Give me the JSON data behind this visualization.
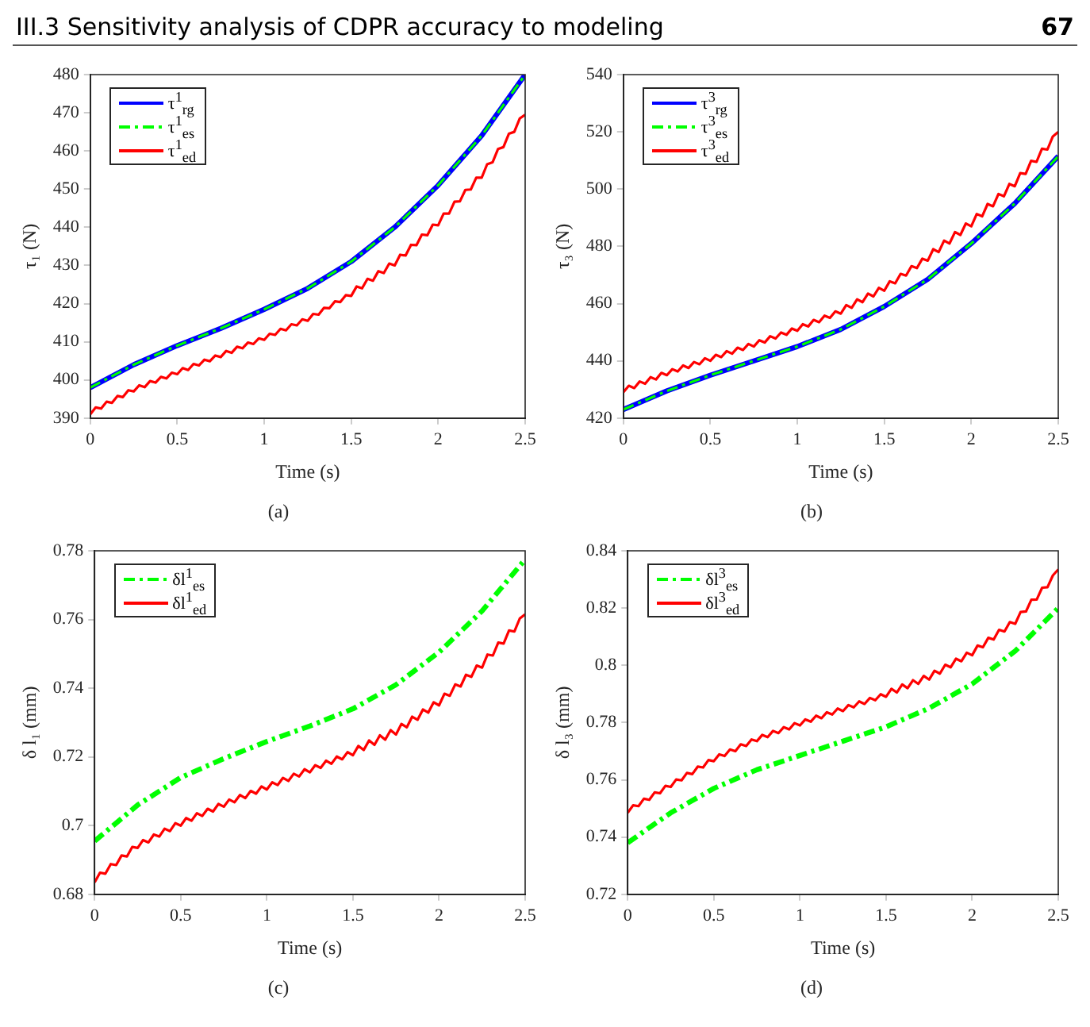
{
  "chart_data": [
    {
      "type": "line",
      "xlabel": "Time (s)",
      "ylabel": "τ₁ (N)",
      "annotations": [
        "III.3 Sensitivity analysis of CDPR accuracy to modeling",
        "67",
        "(a)"
      ],
      "xlim": [
        0,
        2.5
      ],
      "xticks": [
        0,
        0.5,
        1,
        1.5,
        2,
        2.5
      ],
      "ylim": [
        390,
        480
      ],
      "yticks": [
        390,
        400,
        410,
        420,
        430,
        440,
        450,
        460,
        470,
        480
      ],
      "grid": false,
      "legend": "top left",
      "marker": "none",
      "series": [
        {
          "name": "τ$^{1}$$_{rg}$",
          "color": "#0000ff",
          "line_style": "solid",
          "x": [
            0,
            0.25,
            0.5,
            0.75,
            1,
            1.25,
            1.5,
            1.75,
            2,
            2.25,
            2.5
          ],
          "values": [
            398,
            404,
            409,
            413.5,
            418.5,
            424,
            431,
            440,
            451,
            464,
            480
          ]
        },
        {
          "name": "τ$^{1}$$_{es}$",
          "color": "#00ff00",
          "line_style": "dashed",
          "x": [
            0,
            0.25,
            0.5,
            0.75,
            1,
            1.25,
            1.5,
            1.75,
            2,
            2.25,
            2.5
          ],
          "values": [
            398,
            404,
            409,
            413.5,
            418.5,
            424,
            431,
            440,
            451,
            464,
            480
          ]
        },
        {
          "name": "τ$^{1}$$_{ed}$",
          "color": "#ff0000",
          "line_style": "solid",
          "x": [
            0,
            0.03125,
            0.0625,
            0.09375,
            0.125,
            0.15625,
            0.1875,
            0.21875,
            0.25,
            0.28125,
            0.3125,
            0.34375,
            0.375,
            0.40625,
            0.4375,
            0.46875,
            0.5,
            0.53125,
            0.5625,
            0.59375,
            0.625,
            0.65625,
            0.6875,
            0.71875,
            0.75,
            0.78125,
            0.8125,
            0.84375,
            0.875,
            0.90625,
            0.9375,
            0.96875,
            1,
            1.03125,
            1.0625,
            1.09375,
            1.125,
            1.15625,
            1.1875,
            1.21875,
            1.25,
            1.28125,
            1.3125,
            1.34375,
            1.375,
            1.40625,
            1.4375,
            1.46875,
            1.5,
            1.53125,
            1.5625,
            1.59375,
            1.625,
            1.65625,
            1.6875,
            1.71875,
            1.75,
            1.78125,
            1.8125,
            1.84375,
            1.875,
            1.90625,
            1.9375,
            1.96875,
            2,
            2.03125,
            2.0625,
            2.09375,
            2.125,
            2.15625,
            2.1875,
            2.21875,
            2.25,
            2.28125,
            2.3125,
            2.34375,
            2.375,
            2.40625,
            2.4375,
            2.46875,
            2.5
          ],
          "values": [
            391,
            392.8,
            392.5,
            394.3,
            394,
            395.8,
            395.5,
            397.3,
            397,
            398.6,
            398.1,
            399.7,
            399.3,
            400.8,
            400.4,
            401.9,
            401.5,
            403.1,
            402.6,
            404.2,
            403.8,
            405.3,
            404.9,
            406.4,
            406,
            407.6,
            407.1,
            408.7,
            408.3,
            409.8,
            409.4,
            410.9,
            410.5,
            412.1,
            411.8,
            413.4,
            413,
            414.6,
            414.3,
            415.9,
            415.5,
            417.3,
            417.1,
            418.9,
            418.8,
            420.6,
            420.4,
            422.2,
            422,
            424.5,
            424,
            426.5,
            426,
            428.5,
            428,
            430.5,
            430,
            432.8,
            432.6,
            435.4,
            435.3,
            438.1,
            437.9,
            440.7,
            440.5,
            443.6,
            443.6,
            446.7,
            446.8,
            449.8,
            449.9,
            453,
            453,
            456.5,
            457,
            460.5,
            461,
            464.5,
            465,
            468.5,
            469.5
          ]
        }
      ]
    },
    {
      "type": "line",
      "xlabel": "Time (s)",
      "ylabel": "τ₃ (N)",
      "annotations": [
        "(b)"
      ],
      "xlim": [
        0,
        2.5
      ],
      "xticks": [
        0,
        0.5,
        1,
        1.5,
        2,
        2.5
      ],
      "ylim": [
        420,
        540
      ],
      "yticks": [
        420,
        440,
        460,
        480,
        500,
        520,
        540
      ],
      "grid": false,
      "legend": "top left",
      "marker": "none",
      "series": [
        {
          "name": "τ$^{3}$$_{rg}$",
          "color": "#0000ff",
          "line_style": "solid",
          "x": [
            0,
            0.25,
            0.5,
            0.75,
            1,
            1.25,
            1.5,
            1.75,
            2,
            2.25,
            2.5
          ],
          "values": [
            423,
            429.5,
            435,
            440,
            445,
            451,
            459,
            468.5,
            481,
            495,
            511.5
          ]
        },
        {
          "name": "τ$^{3}$$_{es}$",
          "color": "#00ff00",
          "line_style": "dashed",
          "x": [
            0,
            0.25,
            0.5,
            0.75,
            1,
            1.25,
            1.5,
            1.75,
            2,
            2.25,
            2.5
          ],
          "values": [
            423,
            429.5,
            435,
            440,
            445,
            451,
            459,
            468.5,
            481,
            495,
            511.5
          ]
        },
        {
          "name": "τ$^{3}$$_{ed}$",
          "color": "#ff0000",
          "line_style": "solid",
          "x": [
            0,
            0.03125,
            0.0625,
            0.09375,
            0.125,
            0.15625,
            0.1875,
            0.21875,
            0.25,
            0.28125,
            0.3125,
            0.34375,
            0.375,
            0.40625,
            0.4375,
            0.46875,
            0.5,
            0.53125,
            0.5625,
            0.59375,
            0.625,
            0.65625,
            0.6875,
            0.71875,
            0.75,
            0.78125,
            0.8125,
            0.84375,
            0.875,
            0.90625,
            0.9375,
            0.96875,
            1,
            1.03125,
            1.0625,
            1.09375,
            1.125,
            1.15625,
            1.1875,
            1.21875,
            1.25,
            1.28125,
            1.3125,
            1.34375,
            1.375,
            1.40625,
            1.4375,
            1.46875,
            1.5,
            1.53125,
            1.5625,
            1.59375,
            1.625,
            1.65625,
            1.6875,
            1.71875,
            1.75,
            1.78125,
            1.8125,
            1.84375,
            1.875,
            1.90625,
            1.9375,
            1.96875,
            2,
            2.03125,
            2.0625,
            2.09375,
            2.125,
            2.15625,
            2.1875,
            2.21875,
            2.25,
            2.28125,
            2.3125,
            2.34375,
            2.375,
            2.40625,
            2.4375,
            2.46875,
            2.5
          ],
          "values": [
            429,
            431.3,
            430.5,
            432.8,
            432,
            434.3,
            433.5,
            435.8,
            435,
            437.1,
            436.3,
            438.4,
            437.5,
            439.6,
            438.8,
            440.9,
            440,
            442.1,
            441.3,
            443.4,
            442.5,
            444.6,
            443.8,
            445.9,
            445,
            447.2,
            446.4,
            448.6,
            447.8,
            449.9,
            449.1,
            451.3,
            450.5,
            452.8,
            452,
            454.3,
            453.5,
            455.8,
            455,
            457.3,
            456.5,
            459.5,
            458.5,
            461.5,
            460.5,
            463.5,
            462.5,
            465.5,
            464.5,
            467.8,
            467.1,
            470.4,
            469.8,
            473.1,
            472.4,
            475.7,
            475,
            479,
            478,
            482,
            481,
            485,
            484,
            488,
            487,
            491.3,
            490.5,
            494.8,
            494,
            498.3,
            497.5,
            501.8,
            501,
            505.6,
            505.3,
            509.9,
            509.5,
            514.1,
            513.8,
            518.4,
            520
          ]
        }
      ]
    },
    {
      "type": "line",
      "xlabel": "Time (s)",
      "ylabel": "δ l₁ (mm)",
      "annotations": [
        "(c)"
      ],
      "xlim": [
        0,
        2.5
      ],
      "xticks": [
        0,
        0.5,
        1,
        1.5,
        2,
        2.5
      ],
      "ylim": [
        0.68,
        0.78
      ],
      "yticks": [
        0.68,
        0.7,
        0.72,
        0.74,
        0.76,
        0.78
      ],
      "grid": false,
      "legend": "top left",
      "marker": "none",
      "series": [
        {
          "name": "δl$^{1}$$_{es}$",
          "color": "#00ff00",
          "line_style": "dashed",
          "x": [
            0,
            0.25,
            0.5,
            0.75,
            1,
            1.25,
            1.5,
            1.75,
            2,
            2.25,
            2.5
          ],
          "values": [
            0.6955,
            0.706,
            0.714,
            0.7195,
            0.7245,
            0.729,
            0.734,
            0.741,
            0.7505,
            0.7625,
            0.7775
          ]
        },
        {
          "name": "δl$^{1}$$_{ed}$",
          "color": "#ff0000",
          "line_style": "solid",
          "x": [
            0,
            0.03125,
            0.0625,
            0.09375,
            0.125,
            0.15625,
            0.1875,
            0.21875,
            0.25,
            0.28125,
            0.3125,
            0.34375,
            0.375,
            0.40625,
            0.4375,
            0.46875,
            0.5,
            0.53125,
            0.5625,
            0.59375,
            0.625,
            0.65625,
            0.6875,
            0.71875,
            0.75,
            0.78125,
            0.8125,
            0.84375,
            0.875,
            0.90625,
            0.9375,
            0.96875,
            1,
            1.03125,
            1.0625,
            1.09375,
            1.125,
            1.15625,
            1.1875,
            1.21875,
            1.25,
            1.28125,
            1.3125,
            1.34375,
            1.375,
            1.40625,
            1.4375,
            1.46875,
            1.5,
            1.53125,
            1.5625,
            1.59375,
            1.625,
            1.65625,
            1.6875,
            1.71875,
            1.75,
            1.78125,
            1.8125,
            1.84375,
            1.875,
            1.90625,
            1.9375,
            1.96875,
            2,
            2.03125,
            2.0625,
            2.09375,
            2.125,
            2.15625,
            2.1875,
            2.21875,
            2.25,
            2.28125,
            2.3125,
            2.34375,
            2.375,
            2.40625,
            2.4375,
            2.46875,
            2.5
          ],
          "values": [
            0.6835,
            0.6863,
            0.686,
            0.6888,
            0.6885,
            0.6913,
            0.691,
            0.6938,
            0.6935,
            0.6958,
            0.6951,
            0.6974,
            0.6968,
            0.6991,
            0.6984,
            0.7007,
            0.7,
            0.7022,
            0.7014,
            0.7036,
            0.7028,
            0.7049,
            0.7041,
            0.7063,
            0.7055,
            0.7076,
            0.7068,
            0.7089,
            0.708,
            0.7101,
            0.7093,
            0.7114,
            0.7105,
            0.7126,
            0.7118,
            0.7139,
            0.713,
            0.7151,
            0.7143,
            0.7164,
            0.7155,
            0.7176,
            0.7168,
            0.7189,
            0.718,
            0.7201,
            0.7193,
            0.7214,
            0.7205,
            0.7232,
            0.722,
            0.7248,
            0.7235,
            0.7263,
            0.725,
            0.7278,
            0.7265,
            0.7296,
            0.7286,
            0.7317,
            0.7308,
            0.7338,
            0.7329,
            0.7359,
            0.735,
            0.7384,
            0.7378,
            0.7411,
            0.7405,
            0.7439,
            0.7433,
            0.7466,
            0.746,
            0.7498,
            0.7495,
            0.7533,
            0.753,
            0.7568,
            0.7565,
            0.7603,
            0.7615
          ]
        }
      ]
    },
    {
      "type": "line",
      "xlabel": "Time (s)",
      "ylabel": "δ l₃ (mm)",
      "annotations": [
        "(d)"
      ],
      "xlim": [
        0,
        2.5
      ],
      "xticks": [
        0,
        0.5,
        1,
        1.5,
        2,
        2.5
      ],
      "ylim": [
        0.72,
        0.84
      ],
      "yticks": [
        0.72,
        0.74,
        0.76,
        0.78,
        0.8,
        0.82,
        0.84
      ],
      "grid": false,
      "legend": "top left",
      "marker": "none",
      "series": [
        {
          "name": "δl$^{3}$$_{es}$",
          "color": "#00ff00",
          "line_style": "dashed",
          "x": [
            0,
            0.25,
            0.5,
            0.75,
            1,
            1.25,
            1.5,
            1.75,
            2,
            2.25,
            2.5
          ],
          "values": [
            0.738,
            0.7485,
            0.757,
            0.7635,
            0.7685,
            0.7735,
            0.7785,
            0.785,
            0.7935,
            0.805,
            0.82
          ]
        },
        {
          "name": "δl$^{3}$$_{ed}$",
          "color": "#ff0000",
          "line_style": "solid",
          "x": [
            0,
            0.03125,
            0.0625,
            0.09375,
            0.125,
            0.15625,
            0.1875,
            0.21875,
            0.25,
            0.28125,
            0.3125,
            0.34375,
            0.375,
            0.40625,
            0.4375,
            0.46875,
            0.5,
            0.53125,
            0.5625,
            0.59375,
            0.625,
            0.65625,
            0.6875,
            0.71875,
            0.75,
            0.78125,
            0.8125,
            0.84375,
            0.875,
            0.90625,
            0.9375,
            0.96875,
            1,
            1.03125,
            1.0625,
            1.09375,
            1.125,
            1.15625,
            1.1875,
            1.21875,
            1.25,
            1.28125,
            1.3125,
            1.34375,
            1.375,
            1.40625,
            1.4375,
            1.46875,
            1.5,
            1.53125,
            1.5625,
            1.59375,
            1.625,
            1.65625,
            1.6875,
            1.71875,
            1.75,
            1.78125,
            1.8125,
            1.84375,
            1.875,
            1.90625,
            1.9375,
            1.96875,
            2,
            2.03125,
            2.0625,
            2.09375,
            2.125,
            2.15625,
            2.1875,
            2.21875,
            2.25,
            2.28125,
            2.3125,
            2.34375,
            2.375,
            2.40625,
            2.4375,
            2.46875,
            2.5
          ],
          "values": [
            0.7485,
            0.7511,
            0.7508,
            0.7534,
            0.753,
            0.7556,
            0.7553,
            0.7579,
            0.7575,
            0.7601,
            0.7598,
            0.7624,
            0.762,
            0.7646,
            0.7643,
            0.7669,
            0.7665,
            0.7689,
            0.7683,
            0.7706,
            0.77,
            0.7724,
            0.7718,
            0.7741,
            0.7735,
            0.7757,
            0.7749,
            0.7771,
            0.7763,
            0.7784,
            0.7776,
            0.7798,
            0.779,
            0.7811,
            0.7803,
            0.7824,
            0.7815,
            0.7836,
            0.7828,
            0.7849,
            0.784,
            0.7861,
            0.7853,
            0.7874,
            0.7865,
            0.7886,
            0.7878,
            0.7899,
            0.789,
            0.7918,
            0.7905,
            0.7933,
            0.792,
            0.7948,
            0.7935,
            0.7963,
            0.795,
            0.7981,
            0.7971,
            0.8002,
            0.7993,
            0.8023,
            0.8014,
            0.8044,
            0.8035,
            0.8069,
            0.8063,
            0.8096,
            0.809,
            0.8124,
            0.8118,
            0.8151,
            0.8145,
            0.8186,
            0.8188,
            0.8229,
            0.823,
            0.8271,
            0.8273,
            0.8314,
            0.8335
          ]
        }
      ]
    }
  ]
}
